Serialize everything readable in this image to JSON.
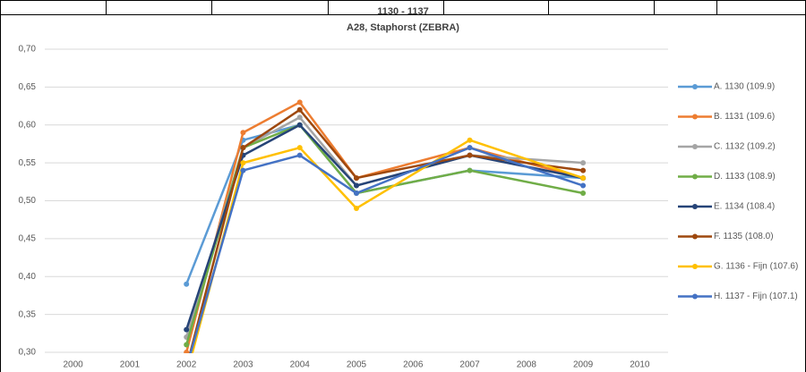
{
  "chart_data": {
    "type": "line",
    "title": "1130 - 1137",
    "subtitle": "A28, Staphorst (ZEBRA)",
    "x": [
      2002,
      2003,
      2004,
      2005,
      2007,
      2009
    ],
    "xlim": [
      1999.5,
      2010.5
    ],
    "xticks": [
      2000,
      2001,
      2002,
      2003,
      2004,
      2005,
      2006,
      2007,
      2008,
      2009,
      2010
    ],
    "ylim": [
      0.3,
      0.7
    ],
    "yticks": [
      {
        "value": 0.3,
        "label": "0,30"
      },
      {
        "value": 0.35,
        "label": "0,35"
      },
      {
        "value": 0.4,
        "label": "0,40"
      },
      {
        "value": 0.45,
        "label": "0,45"
      },
      {
        "value": 0.5,
        "label": "0,50"
      },
      {
        "value": 0.55,
        "label": "0,55"
      },
      {
        "value": 0.6,
        "label": "0,60"
      },
      {
        "value": 0.65,
        "label": "0,65"
      },
      {
        "value": 0.7,
        "label": "0,70"
      }
    ],
    "grid": true,
    "legend": "right",
    "series": [
      {
        "name": "A. 1130 (109.9)",
        "color": "#5b9bd5",
        "values": [
          0.39,
          0.58,
          0.6,
          0.51,
          0.54,
          0.53
        ]
      },
      {
        "name": "B. 1131 (109.6)",
        "color": "#ed7d31",
        "values": [
          0.3,
          0.59,
          0.63,
          0.53,
          0.57,
          0.53
        ]
      },
      {
        "name": "C. 1132 (109.2)",
        "color": "#a5a5a5",
        "values": [
          0.32,
          0.57,
          0.61,
          0.52,
          0.56,
          0.55
        ]
      },
      {
        "name": "D. 1133 (108.9)",
        "color": "#70ad47",
        "values": [
          0.31,
          0.57,
          0.6,
          0.51,
          0.54,
          0.51
        ]
      },
      {
        "name": "E. 1134 (108.4)",
        "color": "#264478",
        "values": [
          0.33,
          0.56,
          0.6,
          0.52,
          0.56,
          0.53
        ]
      },
      {
        "name": "F. 1135 (108.0)",
        "color": "#9e480e",
        "values": [
          0.28,
          0.57,
          0.62,
          0.53,
          0.56,
          0.54
        ]
      },
      {
        "name": "G. 1136 - Fijn (107.6)",
        "color": "#ffc000",
        "values": [
          0.27,
          0.55,
          0.57,
          0.49,
          0.58,
          0.53
        ]
      },
      {
        "name": "H. 1137 - Fijn (107.1)",
        "color": "#4472c4",
        "values": [
          0.28,
          0.54,
          0.56,
          0.51,
          0.57,
          0.52
        ]
      }
    ]
  }
}
